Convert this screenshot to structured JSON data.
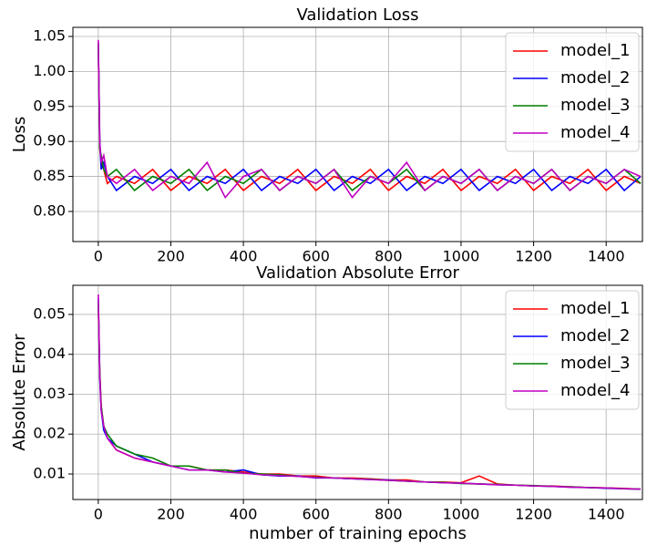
{
  "chart_data": [
    {
      "type": "line",
      "title": "Validation Loss",
      "ylabel": "Loss",
      "x": [
        0,
        4,
        8,
        15,
        25,
        50,
        100,
        150,
        200,
        250,
        300,
        350,
        400,
        450,
        500,
        550,
        600,
        650,
        700,
        750,
        800,
        850,
        900,
        950,
        1000,
        1050,
        1100,
        1150,
        1200,
        1250,
        1300,
        1350,
        1400,
        1450,
        1495
      ],
      "series": [
        {
          "name": "model_1",
          "color": "#ff0000",
          "values": [
            1.04,
            0.89,
            0.87,
            0.86,
            0.84,
            0.85,
            0.84,
            0.86,
            0.83,
            0.85,
            0.84,
            0.86,
            0.83,
            0.85,
            0.84,
            0.86,
            0.83,
            0.85,
            0.84,
            0.86,
            0.83,
            0.85,
            0.84,
            0.86,
            0.83,
            0.85,
            0.84,
            0.86,
            0.83,
            0.85,
            0.84,
            0.86,
            0.83,
            0.85,
            0.84
          ]
        },
        {
          "name": "model_2",
          "color": "#0000ff",
          "values": [
            1.04,
            0.9,
            0.86,
            0.87,
            0.85,
            0.83,
            0.85,
            0.84,
            0.86,
            0.83,
            0.85,
            0.84,
            0.86,
            0.83,
            0.85,
            0.84,
            0.86,
            0.83,
            0.85,
            0.84,
            0.86,
            0.83,
            0.85,
            0.84,
            0.86,
            0.83,
            0.85,
            0.84,
            0.86,
            0.83,
            0.85,
            0.84,
            0.86,
            0.83,
            0.85
          ]
        },
        {
          "name": "model_3",
          "color": "#008000",
          "values": [
            1.04,
            0.89,
            0.88,
            0.86,
            0.85,
            0.86,
            0.83,
            0.85,
            0.84,
            0.86,
            0.83,
            0.85,
            0.84,
            0.86,
            0.83,
            0.85,
            0.84,
            0.86,
            0.83,
            0.85,
            0.84,
            0.86,
            0.83,
            0.85,
            0.84,
            0.86,
            0.83,
            0.85,
            0.84,
            0.86,
            0.83,
            0.85,
            0.84,
            0.86,
            0.84
          ]
        },
        {
          "name": "model_4",
          "color": "#c000c0",
          "values": [
            1.045,
            0.9,
            0.87,
            0.88,
            0.85,
            0.84,
            0.86,
            0.83,
            0.85,
            0.84,
            0.87,
            0.82,
            0.85,
            0.86,
            0.83,
            0.85,
            0.84,
            0.86,
            0.82,
            0.85,
            0.84,
            0.87,
            0.83,
            0.85,
            0.84,
            0.86,
            0.83,
            0.85,
            0.84,
            0.86,
            0.83,
            0.85,
            0.84,
            0.86,
            0.85
          ]
        }
      ],
      "xlim": [
        -70,
        1500
      ],
      "xticks": [
        0,
        200,
        400,
        600,
        800,
        1000,
        1200,
        1400
      ],
      "ylim": [
        0.757,
        1.063
      ],
      "yticks": [
        {
          "value": 0.8,
          "label": "0.80"
        },
        0.85,
        {
          "value": 0.9,
          "label": "0.90"
        },
        0.95,
        {
          "value": 1,
          "label": "1.00"
        },
        1.05
      ],
      "grid": true,
      "legend": "upper right"
    },
    {
      "type": "line",
      "title": "Validation Absolute Error",
      "ylabel": "Absolute Error",
      "xlabel": "number of training epochs",
      "x": [
        0,
        4,
        8,
        15,
        25,
        50,
        100,
        150,
        200,
        250,
        300,
        350,
        400,
        450,
        500,
        550,
        600,
        650,
        700,
        750,
        800,
        850,
        900,
        950,
        1000,
        1050,
        1100,
        1150,
        1200,
        1250,
        1300,
        1350,
        1400,
        1450,
        1495
      ],
      "series": [
        {
          "name": "model_1",
          "color": "#ff0000",
          "values": [
            0.052,
            0.035,
            0.027,
            0.022,
            0.019,
            0.016,
            0.014,
            0.013,
            0.012,
            0.012,
            0.011,
            0.011,
            0.0105,
            0.01,
            0.01,
            0.0095,
            0.0095,
            0.009,
            0.009,
            0.0088,
            0.0085,
            0.0085,
            0.008,
            0.008,
            0.0078,
            0.0095,
            0.0075,
            0.0072,
            0.007,
            0.007,
            0.0068,
            0.0066,
            0.0065,
            0.0064,
            0.0062
          ]
        },
        {
          "name": "model_2",
          "color": "#0000ff",
          "values": [
            0.054,
            0.034,
            0.026,
            0.021,
            0.019,
            0.017,
            0.015,
            0.013,
            0.012,
            0.011,
            0.011,
            0.0105,
            0.011,
            0.0098,
            0.0095,
            0.0095,
            0.009,
            0.009,
            0.0088,
            0.0086,
            0.0085,
            0.0082,
            0.008,
            0.0078,
            0.0077,
            0.0075,
            0.0073,
            0.0072,
            0.007,
            0.0069,
            0.0067,
            0.0066,
            0.0064,
            0.0063,
            0.0062
          ]
        },
        {
          "name": "model_3",
          "color": "#008000",
          "values": [
            0.053,
            0.036,
            0.027,
            0.022,
            0.02,
            0.017,
            0.015,
            0.014,
            0.012,
            0.012,
            0.011,
            0.011,
            0.0102,
            0.01,
            0.0098,
            0.0094,
            0.0092,
            0.009,
            0.0088,
            0.0087,
            0.0084,
            0.0082,
            0.008,
            0.0079,
            0.0076,
            0.0075,
            0.0074,
            0.0072,
            0.0071,
            0.0069,
            0.0068,
            0.0066,
            0.0065,
            0.0063,
            0.0062
          ]
        },
        {
          "name": "model_4",
          "color": "#c000c0",
          "values": [
            0.055,
            0.035,
            0.026,
            0.022,
            0.019,
            0.016,
            0.014,
            0.013,
            0.012,
            0.011,
            0.011,
            0.0105,
            0.0102,
            0.0098,
            0.0096,
            0.0094,
            0.0091,
            0.009,
            0.0088,
            0.0086,
            0.0084,
            0.0082,
            0.008,
            0.0078,
            0.0077,
            0.0075,
            0.0073,
            0.0072,
            0.007,
            0.0069,
            0.0067,
            0.0066,
            0.0065,
            0.0063,
            0.0062
          ]
        }
      ],
      "xlim": [
        -70,
        1500
      ],
      "xticks": [
        0,
        200,
        400,
        600,
        800,
        1000,
        1200,
        1400
      ],
      "ylim": [
        0.0036,
        0.0573
      ],
      "yticks": [
        0.01,
        0.02,
        0.03,
        0.04,
        0.05
      ],
      "grid": true,
      "legend": "upper right"
    }
  ]
}
